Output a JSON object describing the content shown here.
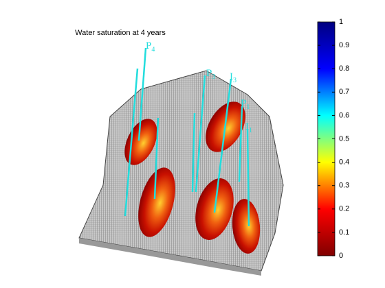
{
  "chart_data": {
    "type": "colorbar",
    "title": "Water saturation at 4 years",
    "clim": [
      0,
      1
    ],
    "ticks": [
      0,
      0.1,
      0.2,
      0.3,
      0.4,
      0.5,
      0.6,
      0.7,
      0.8,
      0.9,
      1
    ],
    "colormap": [
      "#800000",
      "#ff0000",
      "#ffff00",
      "#00ffff",
      "#0000ff",
      "#000080"
    ],
    "wells": [
      {
        "letter": "P",
        "index": "4"
      },
      {
        "letter": "P",
        "index": "3"
      },
      {
        "letter": "I",
        "index": "3"
      },
      {
        "letter": "P",
        "index": "1"
      },
      {
        "letter": "I",
        "index": "1"
      }
    ]
  }
}
